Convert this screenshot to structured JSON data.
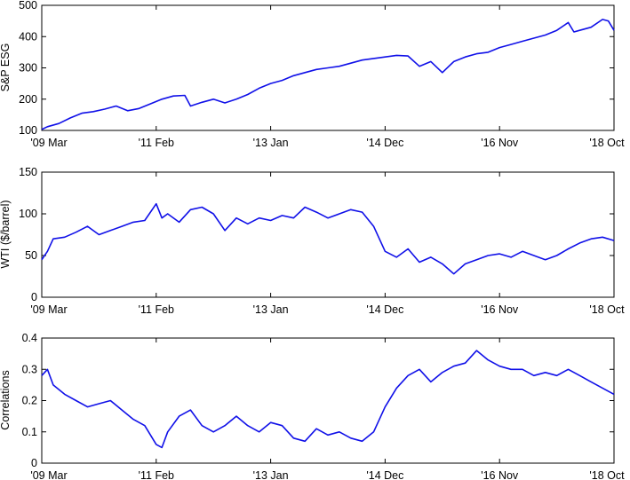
{
  "x_tick_labels": [
    "'09 Mar",
    "'11 Feb",
    "'13 Jan",
    "'14 Dec",
    "'16 Nov",
    "'18 Oct"
  ],
  "colors": {
    "series": "#1010e8",
    "axes": "#000000",
    "background": "#ffffff"
  },
  "chart_data": [
    {
      "type": "line",
      "title": "",
      "xlabel": "",
      "ylabel": "S&P ESG",
      "x_categories": [
        "'09 Mar",
        "'11 Feb",
        "'13 Jan",
        "'14 Dec",
        "'16 Nov",
        "'18 Oct"
      ],
      "xlim": [
        0,
        1
      ],
      "ylim": [
        100,
        500
      ],
      "yticks": [
        100,
        200,
        300,
        400,
        500
      ],
      "grid": false,
      "series": [
        {
          "x": [
            0,
            0.01,
            0.03,
            0.05,
            0.07,
            0.09,
            0.11,
            0.13,
            0.15,
            0.17,
            0.19,
            0.21,
            0.23,
            0.25,
            0.26,
            0.28,
            0.3,
            0.32,
            0.34,
            0.36,
            0.38,
            0.4,
            0.42,
            0.44,
            0.46,
            0.48,
            0.5,
            0.52,
            0.54,
            0.56,
            0.58,
            0.6,
            0.62,
            0.64,
            0.66,
            0.68,
            0.7,
            0.72,
            0.74,
            0.76,
            0.78,
            0.8,
            0.82,
            0.84,
            0.86,
            0.88,
            0.9,
            0.92,
            0.93,
            0.94,
            0.96,
            0.98,
            0.99,
            1.0
          ],
          "y": [
            103,
            112,
            122,
            140,
            155,
            160,
            168,
            178,
            163,
            170,
            185,
            200,
            210,
            212,
            178,
            190,
            200,
            188,
            200,
            215,
            235,
            250,
            260,
            275,
            285,
            295,
            300,
            305,
            315,
            325,
            330,
            335,
            340,
            338,
            305,
            320,
            285,
            320,
            335,
            345,
            350,
            365,
            375,
            385,
            395,
            405,
            420,
            445,
            415,
            420,
            430,
            455,
            450,
            420
          ]
        }
      ]
    },
    {
      "type": "line",
      "title": "",
      "xlabel": "",
      "ylabel": "WTI ($/barrel)",
      "x_categories": [
        "'09 Mar",
        "'11 Feb",
        "'13 Jan",
        "'14 Dec",
        "'16 Nov",
        "'18 Oct"
      ],
      "xlim": [
        0,
        1
      ],
      "ylim": [
        0,
        150
      ],
      "yticks": [
        0,
        50,
        100,
        150
      ],
      "grid": false,
      "series": [
        {
          "x": [
            0,
            0.01,
            0.02,
            0.04,
            0.06,
            0.08,
            0.1,
            0.12,
            0.14,
            0.16,
            0.18,
            0.2,
            0.21,
            0.22,
            0.24,
            0.26,
            0.28,
            0.3,
            0.32,
            0.34,
            0.36,
            0.38,
            0.4,
            0.42,
            0.44,
            0.46,
            0.48,
            0.5,
            0.52,
            0.54,
            0.56,
            0.58,
            0.6,
            0.62,
            0.64,
            0.66,
            0.68,
            0.7,
            0.72,
            0.74,
            0.76,
            0.78,
            0.8,
            0.82,
            0.84,
            0.86,
            0.88,
            0.9,
            0.92,
            0.94,
            0.96,
            0.98,
            1.0
          ],
          "y": [
            45,
            55,
            70,
            72,
            78,
            85,
            75,
            80,
            85,
            90,
            92,
            112,
            95,
            100,
            90,
            105,
            108,
            100,
            80,
            95,
            88,
            95,
            92,
            98,
            95,
            108,
            102,
            95,
            100,
            105,
            102,
            85,
            55,
            48,
            58,
            42,
            48,
            40,
            28,
            40,
            45,
            50,
            52,
            48,
            55,
            50,
            45,
            50,
            58,
            65,
            70,
            72,
            68
          ]
        }
      ]
    },
    {
      "type": "line",
      "title": "",
      "xlabel": "",
      "ylabel": "Correlations",
      "x_categories": [
        "'09 Mar",
        "'11 Feb",
        "'13 Jan",
        "'14 Dec",
        "'16 Nov",
        "'18 Oct"
      ],
      "xlim": [
        0,
        1
      ],
      "ylim": [
        0,
        0.4
      ],
      "yticks": [
        0,
        0.1,
        0.2,
        0.3,
        0.4
      ],
      "grid": false,
      "series": [
        {
          "x": [
            0,
            0.01,
            0.02,
            0.04,
            0.06,
            0.08,
            0.1,
            0.12,
            0.14,
            0.16,
            0.18,
            0.2,
            0.21,
            0.22,
            0.24,
            0.26,
            0.28,
            0.3,
            0.32,
            0.34,
            0.36,
            0.38,
            0.4,
            0.42,
            0.44,
            0.46,
            0.48,
            0.5,
            0.52,
            0.54,
            0.56,
            0.58,
            0.6,
            0.62,
            0.64,
            0.66,
            0.68,
            0.7,
            0.72,
            0.74,
            0.76,
            0.78,
            0.8,
            0.82,
            0.84,
            0.86,
            0.88,
            0.9,
            0.92,
            0.94,
            0.96,
            0.98,
            1.0
          ],
          "y": [
            0.28,
            0.3,
            0.25,
            0.22,
            0.2,
            0.18,
            0.19,
            0.2,
            0.17,
            0.14,
            0.12,
            0.06,
            0.05,
            0.1,
            0.15,
            0.17,
            0.12,
            0.1,
            0.12,
            0.15,
            0.12,
            0.1,
            0.13,
            0.12,
            0.08,
            0.07,
            0.11,
            0.09,
            0.1,
            0.08,
            0.07,
            0.1,
            0.18,
            0.24,
            0.28,
            0.3,
            0.26,
            0.29,
            0.31,
            0.32,
            0.36,
            0.33,
            0.31,
            0.3,
            0.3,
            0.28,
            0.29,
            0.28,
            0.3,
            0.28,
            0.26,
            0.24,
            0.22
          ]
        }
      ]
    }
  ]
}
